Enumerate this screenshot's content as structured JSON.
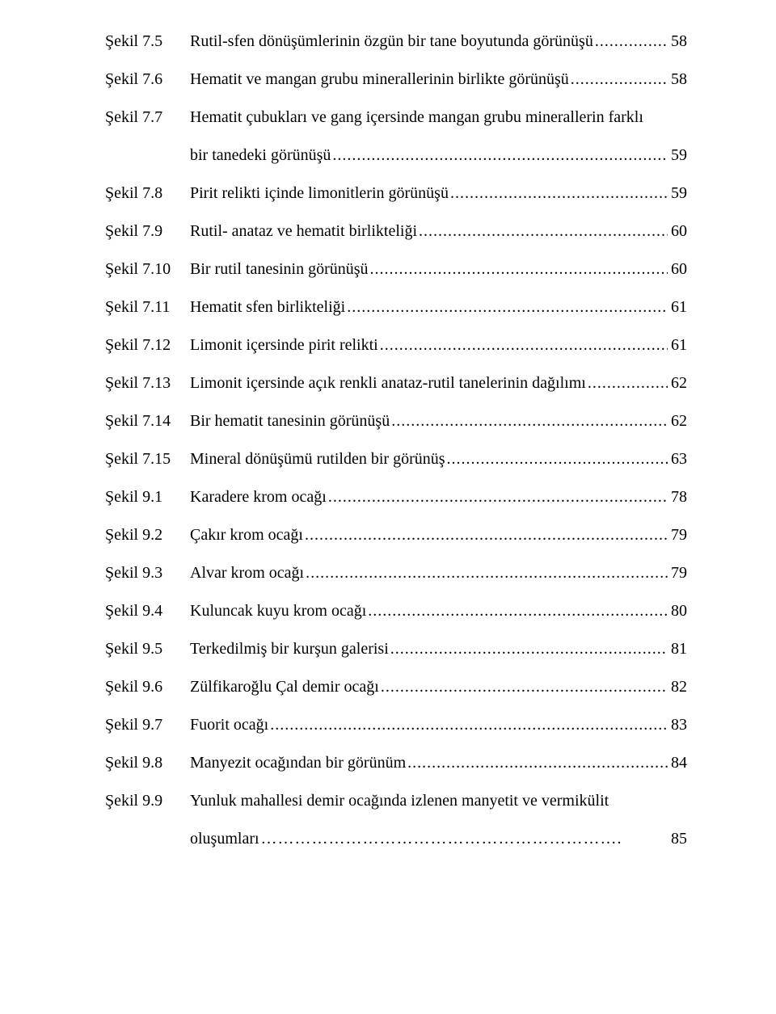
{
  "dots": "...............................................................................................................................................................................................................",
  "final_dots": "……………………………………………………….",
  "entries": [
    {
      "label": "Şekil 7.5",
      "lines": [
        "Rutil-sfen dönüşümlerinin özgün bir tane boyutunda görünüşü"
      ],
      "page": "58"
    },
    {
      "label": "Şekil 7.6",
      "lines": [
        "Hematit ve mangan grubu minerallerinin birlikte görünüşü"
      ],
      "page": "58"
    },
    {
      "label": "Şekil 7.7",
      "lines": [
        "Hematit çubukları ve gang içersinde mangan grubu minerallerin farklı",
        "bir tanedeki görünüşü"
      ],
      "page": "59"
    },
    {
      "label": "Şekil 7.8",
      "lines": [
        "Pirit relikti içinde limonitlerin görünüşü"
      ],
      "page": "59"
    },
    {
      "label": "Şekil 7.9",
      "lines": [
        "Rutil- anataz ve hematit birlikteliği"
      ],
      "page": "60"
    },
    {
      "label": "Şekil 7.10",
      "lines": [
        "Bir rutil tanesinin görünüşü"
      ],
      "page": "60"
    },
    {
      "label": "Şekil 7.11",
      "lines": [
        "Hematit sfen birlikteliği"
      ],
      "page": "61"
    },
    {
      "label": "Şekil 7.12",
      "lines": [
        "Limonit içersinde pirit relikti"
      ],
      "page": "61"
    },
    {
      "label": "Şekil 7.13",
      "lines": [
        "Limonit içersinde açık renkli anataz-rutil tanelerinin dağılımı"
      ],
      "page": "62"
    },
    {
      "label": "Şekil 7.14",
      "lines": [
        "Bir hematit tanesinin görünüşü"
      ],
      "page": "62"
    },
    {
      "label": "Şekil 7.15",
      "lines": [
        "Mineral dönüşümü rutilden bir görünüş"
      ],
      "page": "63"
    },
    {
      "label": "Şekil 9.1",
      "lines": [
        "Karadere  krom ocağı"
      ],
      "page": "78"
    },
    {
      "label": "Şekil 9.2",
      "lines": [
        "Çakır krom ocağı"
      ],
      "page": "79"
    },
    {
      "label": "Şekil 9.3",
      "lines": [
        "Alvar krom ocağı"
      ],
      "page": "79"
    },
    {
      "label": "Şekil 9.4",
      "lines": [
        "Kuluncak kuyu krom ocağı"
      ],
      "page": "80"
    },
    {
      "label": "Şekil 9.5",
      "lines": [
        "Terkedilmiş bir kurşun galerisi"
      ],
      "page": "81"
    },
    {
      "label": "Şekil 9.6",
      "lines": [
        "Zülfikaroğlu Çal demir ocağı"
      ],
      "page": "82"
    },
    {
      "label": "Şekil 9.7",
      "lines": [
        "Fuorit ocağı"
      ],
      "page": "83"
    },
    {
      "label": "Şekil 9.8",
      "lines": [
        "Manyezit ocağından bir görünüm"
      ],
      "page": "84"
    },
    {
      "label": "Şekil 9.9",
      "lines": [
        "Yunluk  mahallesi demir ocağında izlenen manyetit ve vermikülit",
        " oluşumları"
      ],
      "page": "85",
      "final": true
    }
  ]
}
